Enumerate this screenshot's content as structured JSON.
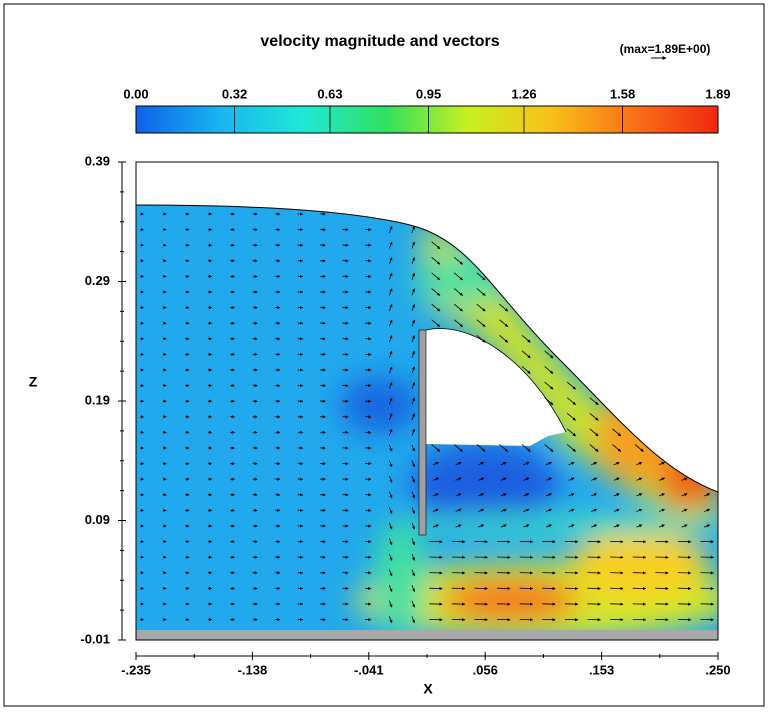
{
  "chart_data": {
    "type": "contour",
    "title": "velocity magnitude and vectors",
    "max_label": "(max=1.89E+00)",
    "x_label": "X",
    "y_label": "Z",
    "xlim": [
      -0.235,
      0.25
    ],
    "ylim": [
      -0.01,
      0.39
    ],
    "xticks": [
      {
        "value": -0.235,
        "label": "-.235"
      },
      {
        "value": -0.138,
        "label": "-.138"
      },
      {
        "value": -0.041,
        "label": "-.041"
      },
      {
        "value": 0.056,
        "label": ".056"
      },
      {
        "value": 0.153,
        "label": ".153"
      },
      {
        "value": 0.25,
        "label": ".250"
      }
    ],
    "yticks": [
      -0.01,
      0.09,
      0.19,
      0.29,
      0.39
    ],
    "colorbar_lim": [
      0,
      1.89
    ],
    "colorbar_ticks": [
      {
        "value": 0,
        "label": "0.00"
      },
      {
        "value": 0.32,
        "label": "0.32"
      },
      {
        "value": 0.63,
        "label": "0.63"
      },
      {
        "value": 0.95,
        "label": "0.95"
      },
      {
        "value": 1.26,
        "label": "1.26"
      },
      {
        "value": 1.58,
        "label": "1.58"
      },
      {
        "value": 1.89,
        "label": "1.89"
      }
    ],
    "colormap": [
      "#1060e8",
      "#18b4f0",
      "#20e8d8",
      "#30e060",
      "#c8f020",
      "#f8c018",
      "#f87018",
      "#f02810"
    ]
  }
}
